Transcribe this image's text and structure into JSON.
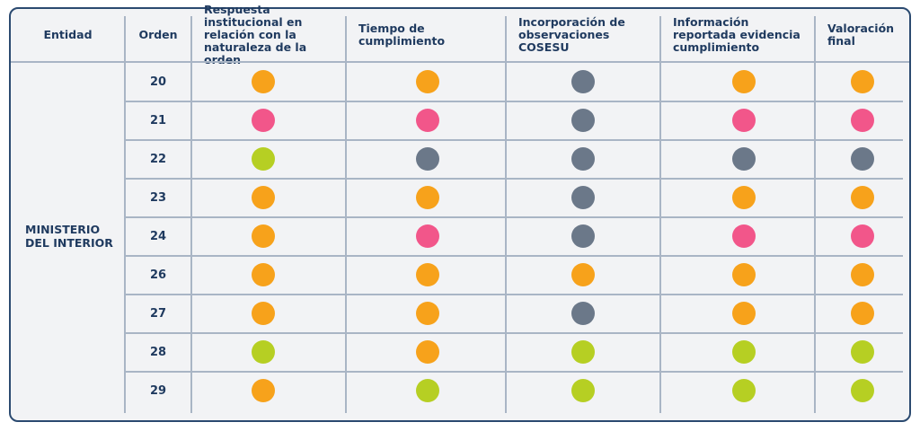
{
  "table": {
    "headers": [
      "Entidad",
      "Orden",
      "Respuesta institucional en relación con la naturaleza de la orden",
      "Tiempo de cumplimiento",
      "Incorporación de observaciones COSESU",
      "Información reportada evidencia cumplimiento",
      "Valoración final"
    ],
    "entity": "MINISTERIO DEL INTERIOR",
    "rows": [
      {
        "orden": "20",
        "cells": [
          "#f7a21b",
          "#f7a21b",
          "#6b7889",
          "#f7a21b",
          "#f7a21b"
        ]
      },
      {
        "orden": "21",
        "cells": [
          "#f2568a",
          "#f2568a",
          "#6b7889",
          "#f2568a",
          "#f2568a"
        ]
      },
      {
        "orden": "22",
        "cells": [
          "#b6cf23",
          "#6b7889",
          "#6b7889",
          "#6b7889",
          "#6b7889"
        ]
      },
      {
        "orden": "23",
        "cells": [
          "#f7a21b",
          "#f7a21b",
          "#6b7889",
          "#f7a21b",
          "#f7a21b"
        ]
      },
      {
        "orden": "24",
        "cells": [
          "#f7a21b",
          "#f2568a",
          "#6b7889",
          "#f2568a",
          "#f2568a"
        ]
      },
      {
        "orden": "26",
        "cells": [
          "#f7a21b",
          "#f7a21b",
          "#f7a21b",
          "#f7a21b",
          "#f7a21b"
        ]
      },
      {
        "orden": "27",
        "cells": [
          "#f7a21b",
          "#f7a21b",
          "#6b7889",
          "#f7a21b",
          "#f7a21b"
        ]
      },
      {
        "orden": "28",
        "cells": [
          "#b6cf23",
          "#f7a21b",
          "#b6cf23",
          "#b6cf23",
          "#b6cf23"
        ]
      },
      {
        "orden": "29",
        "cells": [
          "#f7a21b",
          "#b6cf23",
          "#b6cf23",
          "#b6cf23",
          "#b6cf23"
        ]
      }
    ]
  }
}
